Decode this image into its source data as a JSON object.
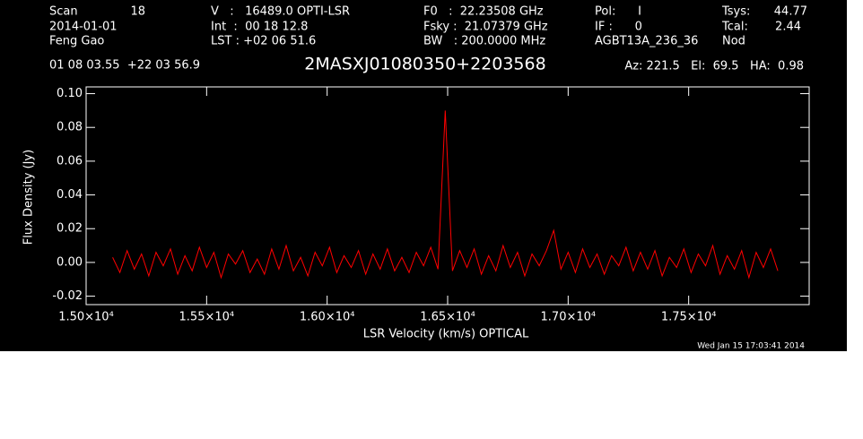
{
  "chart_data": {
    "type": "line",
    "title": "2MASXJ01080350+2203568",
    "header": {
      "scan_label": "Scan",
      "scan": "18",
      "date": "2014-01-01",
      "observer": "Feng Gao",
      "velocity": "V   :   16489.0 OPTI-LSR",
      "int": "Int  :  00 18 12.8",
      "lst": "LST : +02 06 51.6",
      "f0": "F0   :  22.23508 GHz",
      "fsky": "Fsky :  21.07379 GHz",
      "bw": "BW   : 200.0000 MHz",
      "pol": "Pol:      I",
      "if": "IF :      0",
      "project": "AGBT13A_236_36",
      "tsys_label": "Tsys:",
      "tsys": "44.77",
      "tcal_label": "Tcal:",
      "tcal": "2.44",
      "mode": "Nod",
      "coords": "01 08 03.55  +22 03 56.9",
      "azel": "Az: 221.5   El:  69.5   HA:  0.98"
    },
    "x_label": "LSR Velocity (km/s) OPTICAL",
    "y_label": "Flux Density (Jy)",
    "timestamp": "Wed Jan 15 17:03:41 2014",
    "xlim": [
      15000,
      18000
    ],
    "ylim": [
      -0.025,
      0.104
    ],
    "xticks": [
      {
        "value": 15000,
        "label": "1.50×10⁴"
      },
      {
        "value": 15500,
        "label": "1.55×10⁴"
      },
      {
        "value": 16000,
        "label": "1.60×10⁴"
      },
      {
        "value": 16500,
        "label": "1.65×10⁴"
      },
      {
        "value": 17000,
        "label": "1.70×10⁴"
      },
      {
        "value": 17500,
        "label": "1.75×10⁴"
      }
    ],
    "yticks": [
      {
        "value": -0.02,
        "label": "-0.02"
      },
      {
        "value": 0,
        "label": "0.00"
      },
      {
        "value": 0.02,
        "label": "0.02"
      },
      {
        "value": 0.04,
        "label": "0.04"
      },
      {
        "value": 0.06,
        "label": "0.06"
      },
      {
        "value": 0.08,
        "label": "0.08"
      },
      {
        "value": 0.1,
        "label": "0.10"
      }
    ],
    "series": [
      {
        "color": "#ff0000",
        "x": [
          15110,
          15140,
          15170,
          15200,
          15230,
          15260,
          15290,
          15320,
          15350,
          15380,
          15410,
          15440,
          15470,
          15500,
          15530,
          15560,
          15590,
          15620,
          15650,
          15680,
          15710,
          15740,
          15770,
          15800,
          15830,
          15860,
          15890,
          15920,
          15950,
          15980,
          16010,
          16040,
          16070,
          16100,
          16130,
          16160,
          16190,
          16220,
          16250,
          16280,
          16310,
          16340,
          16370,
          16400,
          16430,
          16460,
          16490,
          16520,
          16550,
          16580,
          16610,
          16640,
          16670,
          16700,
          16730,
          16760,
          16790,
          16820,
          16850,
          16880,
          16910,
          16940,
          16970,
          17000,
          17030,
          17060,
          17090,
          17120,
          17150,
          17180,
          17210,
          17240,
          17270,
          17300,
          17330,
          17360,
          17390,
          17420,
          17450,
          17480,
          17510,
          17540,
          17570,
          17600,
          17630,
          17660,
          17690,
          17720,
          17750,
          17780,
          17810,
          17840,
          17870
        ],
        "values": [
          0.003,
          -0.006,
          0.007,
          -0.004,
          0.005,
          -0.008,
          0.006,
          -0.002,
          0.008,
          -0.007,
          0.004,
          -0.005,
          0.009,
          -0.003,
          0.006,
          -0.009,
          0.005,
          -0.001,
          0.007,
          -0.006,
          0.002,
          -0.007,
          0.008,
          -0.004,
          0.01,
          -0.005,
          0.003,
          -0.008,
          0.006,
          -0.002,
          0.009,
          -0.006,
          0.004,
          -0.003,
          0.007,
          -0.007,
          0.005,
          -0.004,
          0.008,
          -0.005,
          0.003,
          -0.006,
          0.006,
          -0.002,
          0.009,
          -0.004,
          0.09,
          -0.005,
          0.007,
          -0.003,
          0.008,
          -0.007,
          0.004,
          -0.005,
          0.01,
          -0.003,
          0.006,
          -0.008,
          0.005,
          -0.002,
          0.007,
          0.019,
          -0.004,
          0.006,
          -0.006,
          0.008,
          -0.003,
          0.005,
          -0.007,
          0.004,
          -0.002,
          0.009,
          -0.005,
          0.006,
          -0.004,
          0.007,
          -0.008,
          0.003,
          -0.003,
          0.008,
          -0.006,
          0.005,
          -0.002,
          0.01,
          -0.007,
          0.004,
          -0.004,
          0.007,
          -0.009,
          0.006,
          -0.003,
          0.008,
          -0.005
        ]
      }
    ]
  }
}
